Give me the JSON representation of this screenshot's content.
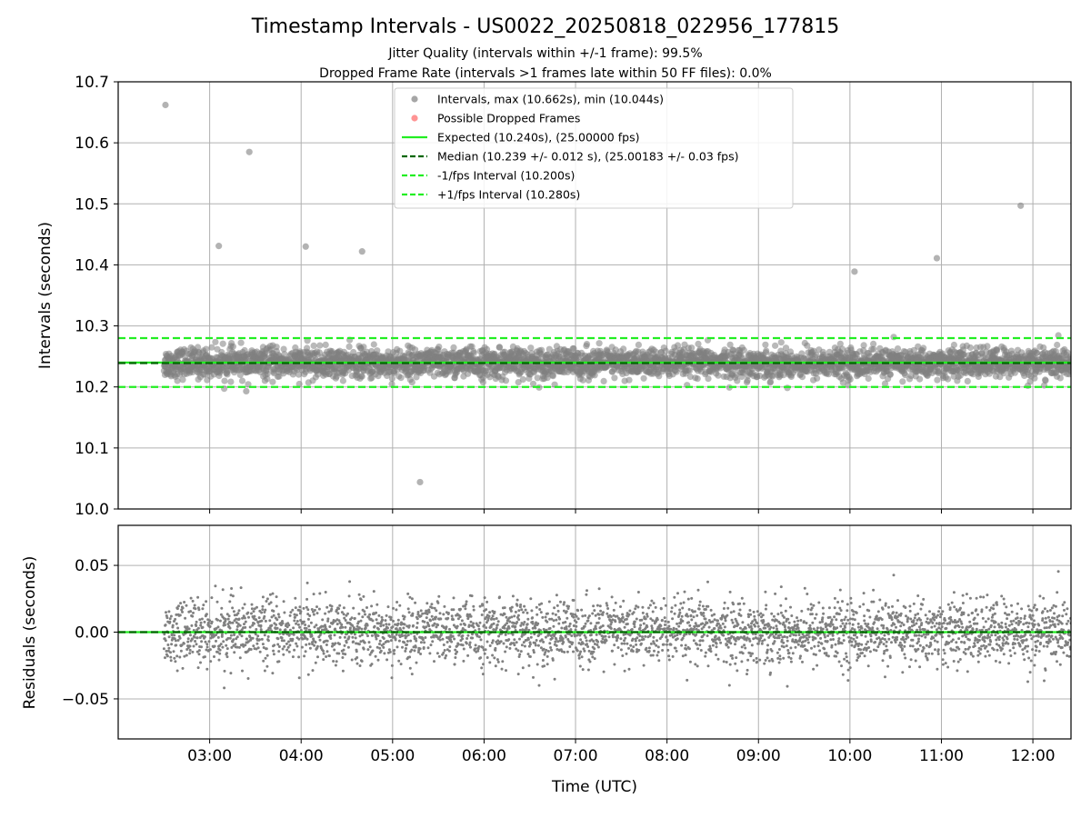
{
  "figure": {
    "title": "Timestamp Intervals - US0022_20250818_022956_177815",
    "subtitle_1": "Jitter Quality (intervals within +/-1 frame): 99.5%",
    "subtitle_2": "Dropped Frame Rate (intervals >1 frames late within 50 FF files): 0.0%"
  },
  "colors": {
    "points": "#808080",
    "dropped": "#ff6666",
    "expected": "#22ee22",
    "median": "#006600",
    "interval": "#22ee22",
    "grid": "#b0b0b0"
  },
  "chart_data": [
    {
      "type": "scatter",
      "ylabel": "Intervals (seconds)",
      "xlabel": "",
      "xlim": [
        "02:00",
        "12:25"
      ],
      "ylim": [
        10.0,
        10.7
      ],
      "yticks": [
        "10.0",
        "10.1",
        "10.2",
        "10.3",
        "10.4",
        "10.5",
        "10.6",
        "10.7"
      ],
      "grid": true,
      "legend_position": "upper-center",
      "legend": [
        "Intervals, max (10.662s), min (10.044s)",
        "Possible Dropped Frames",
        "Expected (10.240s), (25.00000 fps)",
        "Median (10.239 +/- 0.012 s), (25.00183 +/- 0.03 fps)",
        "-1/fps Interval (10.200s)",
        "+1/fps Interval (10.280s)"
      ],
      "lines": {
        "expected": 10.24,
        "median": 10.239,
        "minus_interval": 10.2,
        "plus_interval": 10.28
      },
      "data_range": [
        "02:30",
        "12:25"
      ],
      "band": {
        "center": 10.239,
        "std": 0.012
      },
      "outliers": [
        {
          "t": "02:31",
          "y": 10.662
        },
        {
          "t": "03:06",
          "y": 10.431
        },
        {
          "t": "03:26",
          "y": 10.585
        },
        {
          "t": "04:03",
          "y": 10.43
        },
        {
          "t": "04:40",
          "y": 10.422
        },
        {
          "t": "05:18",
          "y": 10.044
        },
        {
          "t": "03:24",
          "y": 10.193
        },
        {
          "t": "10:03",
          "y": 10.389
        },
        {
          "t": "10:57",
          "y": 10.411
        },
        {
          "t": "11:52",
          "y": 10.497
        }
      ]
    },
    {
      "type": "scatter",
      "ylabel": "Residuals (seconds)",
      "xlabel": "Time (UTC)",
      "xlim": [
        "02:00",
        "12:25"
      ],
      "ylim": [
        -0.08,
        0.08
      ],
      "yticks": [
        "−0.05",
        "0.00",
        "0.05"
      ],
      "xticks": [
        "03:00",
        "04:00",
        "05:00",
        "06:00",
        "07:00",
        "08:00",
        "09:00",
        "10:00",
        "11:00",
        "12:00"
      ],
      "grid": true,
      "zero_line": 0.0,
      "band": {
        "center": 0.0,
        "std": 0.012
      }
    }
  ]
}
